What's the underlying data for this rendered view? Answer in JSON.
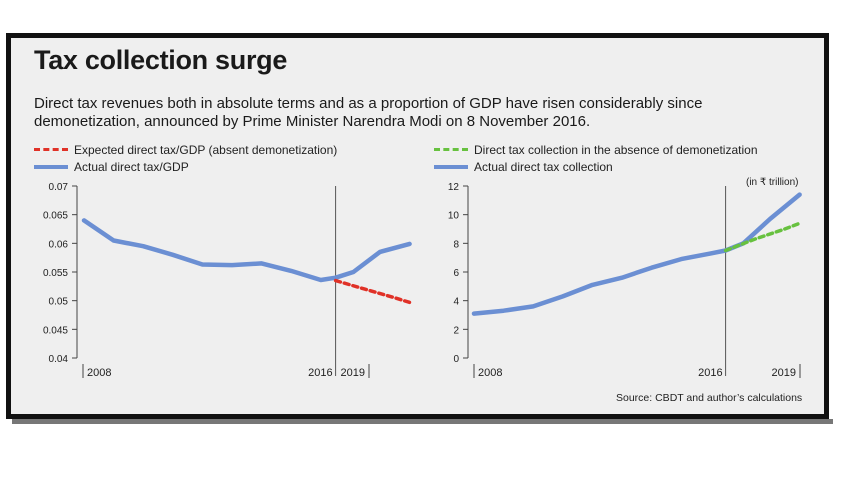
{
  "title": "Tax collection surge",
  "subtitle": "Direct tax revenues both in absolute terms and as a proportion of GDP have risen considerably since demonetization, announced by Prime Minister Narendra Modi on 8 November 2016.",
  "source": "Source: CBDT and author’s calculations",
  "colors": {
    "expected": "#e03127",
    "actual": "#6b8fd3",
    "absence": "#67c13f"
  },
  "chart_data": [
    {
      "type": "line",
      "legend": [
        "Expected direct tax/GDP (absent demonetization)",
        "Actual direct tax/GDP"
      ],
      "xticks": [
        "2008",
        "2016",
        "2019"
      ],
      "ylim": [
        0.04,
        0.07
      ],
      "yticks": [
        "0.04",
        "0.045",
        "0.05",
        "0.055",
        "0.06",
        "0.065",
        "0.07"
      ],
      "event_year": 2016,
      "series": [
        {
          "name": "Actual direct tax/GDP",
          "style": "solid",
          "x": [
            2007.5,
            2008.5,
            2009.5,
            2010.5,
            2011.5,
            2012.5,
            2013.5,
            2014.5,
            2015.5,
            2016,
            2016.6,
            2017.5,
            2018.5
          ],
          "y": [
            0.064,
            0.0605,
            0.0595,
            0.058,
            0.0563,
            0.0562,
            0.0565,
            0.0552,
            0.0536,
            0.054,
            0.055,
            0.0585,
            0.0599
          ]
        },
        {
          "name": "Expected direct tax/GDP (absent demonetization)",
          "style": "dashed",
          "x": [
            2016,
            2017,
            2018,
            2018.5
          ],
          "y": [
            0.0535,
            0.052,
            0.0505,
            0.0497
          ]
        }
      ]
    },
    {
      "type": "line",
      "legend": [
        "Direct tax collection in the absence of demonetization",
        "Actual direct tax collection"
      ],
      "unit": "(in ₹ trillion)",
      "xticks": [
        "2008",
        "2016",
        "2019"
      ],
      "ylim": [
        0,
        12
      ],
      "yticks": [
        "0",
        "2",
        "4",
        "6",
        "8",
        "10",
        "12"
      ],
      "event_year": 2016,
      "series": [
        {
          "name": "Actual direct tax collection",
          "style": "solid",
          "x": [
            2007.5,
            2008.5,
            2009.5,
            2010.5,
            2011.5,
            2012.5,
            2013.5,
            2014.5,
            2015.5,
            2016,
            2016.6,
            2017.5,
            2018.5
          ],
          "y": [
            3.1,
            3.3,
            3.6,
            4.3,
            5.1,
            5.6,
            6.3,
            6.9,
            7.3,
            7.5,
            8.0,
            9.7,
            11.4
          ]
        },
        {
          "name": "Direct tax collection in the absence of demonetization",
          "style": "dashed",
          "x": [
            2016,
            2017,
            2018,
            2018.5
          ],
          "y": [
            7.5,
            8.3,
            9.0,
            9.4
          ]
        }
      ]
    }
  ]
}
